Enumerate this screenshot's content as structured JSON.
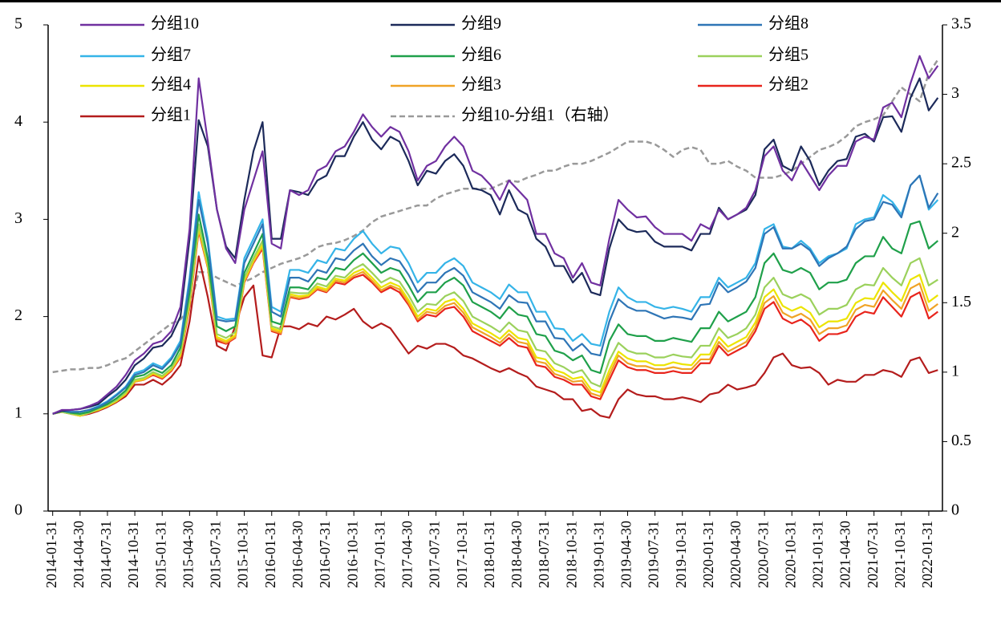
{
  "chart_data": {
    "type": "line",
    "categories": [
      "2014-01-31",
      null,
      null,
      "2014-04-30",
      null,
      null,
      "2014-07-31",
      null,
      null,
      "2014-10-31",
      null,
      null,
      "2015-01-31",
      null,
      null,
      "2015-04-30",
      null,
      null,
      "2015-07-31",
      null,
      null,
      "2015-10-31",
      null,
      null,
      "2016-01-31",
      null,
      null,
      "2016-04-30",
      null,
      null,
      "2016-07-31",
      null,
      null,
      "2016-10-31",
      null,
      null,
      "2017-01-31",
      null,
      null,
      "2017-04-30",
      null,
      null,
      "2017-07-31",
      null,
      null,
      "2017-10-31",
      null,
      null,
      "2018-01-31",
      null,
      null,
      "2018-04-30",
      null,
      null,
      "2018-07-31",
      null,
      null,
      "2018-10-31",
      null,
      null,
      "2019-01-31",
      null,
      null,
      "2019-04-30",
      null,
      null,
      "2019-07-31",
      null,
      null,
      "2019-10-31",
      null,
      null,
      "2020-01-31",
      null,
      null,
      "2020-04-30",
      null,
      null,
      "2020-07-31",
      null,
      null,
      "2020-10-31",
      null,
      null,
      "2021-01-31",
      null,
      null,
      "2021-04-30",
      null,
      null,
      "2021-07-31",
      null,
      null,
      "2021-10-31",
      null,
      null,
      "2022-01-31",
      null
    ],
    "ylim": [
      0,
      5
    ],
    "yticks": [
      0,
      1,
      2,
      3,
      4,
      5
    ],
    "y2lim": [
      0,
      3.5
    ],
    "y2ticks": [
      0,
      0.5,
      1,
      1.5,
      2,
      2.5,
      3,
      3.5
    ],
    "grid": false,
    "series": [
      {
        "name": "分组10",
        "color": "#7030a0",
        "values": [
          1,
          1.04,
          1.04,
          1.05,
          1.08,
          1.12,
          1.2,
          1.28,
          1.4,
          1.55,
          1.62,
          1.72,
          1.75,
          1.85,
          2.1,
          2.9,
          4.45,
          3.8,
          3.1,
          2.7,
          2.55,
          3.1,
          3.4,
          3.7,
          2.75,
          2.7,
          3.3,
          3.25,
          3.3,
          3.5,
          3.55,
          3.7,
          3.75,
          3.9,
          4.08,
          3.95,
          3.85,
          3.95,
          3.9,
          3.7,
          3.4,
          3.55,
          3.6,
          3.75,
          3.85,
          3.75,
          3.5,
          3.45,
          3.35,
          3.2,
          3.4,
          3.3,
          3.2,
          2.85,
          2.85,
          2.65,
          2.6,
          2.4,
          2.55,
          2.35,
          2.32,
          2.8,
          3.2,
          3.1,
          3.02,
          3.03,
          2.92,
          2.85,
          2.85,
          2.85,
          2.78,
          2.95,
          2.9,
          3.1,
          3.0,
          3.05,
          3.12,
          3.3,
          3.65,
          3.75,
          3.5,
          3.4,
          3.6,
          3.45,
          3.3,
          3.45,
          3.55,
          3.55,
          3.8,
          3.85,
          3.82,
          4.15,
          4.2,
          4.05,
          4.4,
          4.68,
          4.45,
          4.58
        ]
      },
      {
        "name": "分组9",
        "color": "#1c2a5a",
        "values": [
          1,
          1.03,
          1.04,
          1.05,
          1.07,
          1.1,
          1.18,
          1.25,
          1.35,
          1.5,
          1.57,
          1.68,
          1.7,
          1.8,
          2.0,
          2.8,
          4.02,
          3.75,
          3.1,
          2.72,
          2.6,
          3.2,
          3.7,
          4.0,
          2.8,
          2.8,
          3.3,
          3.28,
          3.25,
          3.4,
          3.45,
          3.65,
          3.65,
          3.85,
          4.0,
          3.82,
          3.72,
          3.85,
          3.8,
          3.6,
          3.35,
          3.5,
          3.47,
          3.6,
          3.67,
          3.55,
          3.32,
          3.3,
          3.25,
          3.05,
          3.3,
          3.1,
          3.05,
          2.8,
          2.72,
          2.52,
          2.52,
          2.35,
          2.45,
          2.25,
          2.22,
          2.7,
          3.0,
          2.9,
          2.87,
          2.88,
          2.77,
          2.72,
          2.72,
          2.72,
          2.68,
          2.85,
          2.85,
          3.12,
          3.0,
          3.05,
          3.1,
          3.25,
          3.72,
          3.82,
          3.55,
          3.5,
          3.75,
          3.6,
          3.35,
          3.5,
          3.6,
          3.62,
          3.85,
          3.88,
          3.8,
          4.05,
          4.06,
          3.9,
          4.25,
          4.45,
          4.12,
          4.25
        ]
      },
      {
        "name": "分组8",
        "color": "#2e75b6",
        "values": [
          1,
          1.03,
          1.02,
          1.02,
          1.04,
          1.07,
          1.12,
          1.19,
          1.27,
          1.4,
          1.43,
          1.5,
          1.46,
          1.56,
          1.72,
          2.35,
          3.2,
          2.75,
          1.97,
          1.95,
          1.96,
          2.55,
          2.75,
          2.95,
          2.05,
          2.0,
          2.4,
          2.4,
          2.36,
          2.48,
          2.45,
          2.6,
          2.58,
          2.68,
          2.75,
          2.62,
          2.53,
          2.6,
          2.57,
          2.43,
          2.25,
          2.35,
          2.35,
          2.45,
          2.5,
          2.42,
          2.25,
          2.2,
          2.15,
          2.08,
          2.22,
          2.15,
          2.14,
          1.95,
          1.95,
          1.78,
          1.77,
          1.65,
          1.72,
          1.62,
          1.6,
          1.95,
          2.18,
          2.1,
          2.06,
          2.06,
          2.02,
          1.98,
          2.0,
          1.99,
          1.97,
          2.12,
          2.13,
          2.35,
          2.25,
          2.3,
          2.36,
          2.5,
          2.85,
          2.92,
          2.7,
          2.7,
          2.75,
          2.68,
          2.52,
          2.6,
          2.65,
          2.72,
          2.9,
          2.98,
          3.0,
          3.18,
          3.15,
          3.02,
          3.35,
          3.45,
          3.12,
          3.27
        ]
      },
      {
        "name": "分组7",
        "color": "#35b4e8",
        "values": [
          1,
          1.03,
          1.02,
          1.02,
          1.04,
          1.08,
          1.13,
          1.2,
          1.28,
          1.42,
          1.45,
          1.52,
          1.48,
          1.58,
          1.75,
          2.4,
          3.28,
          2.8,
          2.0,
          1.97,
          1.98,
          2.6,
          2.8,
          3.0,
          2.1,
          2.05,
          2.48,
          2.48,
          2.45,
          2.58,
          2.55,
          2.7,
          2.68,
          2.8,
          2.88,
          2.75,
          2.65,
          2.72,
          2.7,
          2.55,
          2.35,
          2.45,
          2.45,
          2.55,
          2.6,
          2.52,
          2.35,
          2.3,
          2.25,
          2.18,
          2.33,
          2.25,
          2.25,
          2.05,
          2.05,
          1.88,
          1.87,
          1.75,
          1.82,
          1.72,
          1.7,
          2.05,
          2.3,
          2.2,
          2.15,
          2.15,
          2.1,
          2.08,
          2.1,
          2.08,
          2.05,
          2.2,
          2.2,
          2.4,
          2.3,
          2.35,
          2.4,
          2.55,
          2.9,
          2.95,
          2.72,
          2.7,
          2.78,
          2.7,
          2.55,
          2.62,
          2.65,
          2.7,
          2.95,
          3.0,
          3.02,
          3.25,
          3.18,
          3.05,
          3.35,
          3.45,
          3.1,
          3.2
        ]
      },
      {
        "name": "分组6",
        "color": "#1fa04a",
        "values": [
          1,
          1.03,
          1.01,
          1.0,
          1.02,
          1.06,
          1.1,
          1.16,
          1.24,
          1.38,
          1.4,
          1.46,
          1.42,
          1.5,
          1.68,
          2.25,
          3.05,
          2.6,
          1.9,
          1.85,
          1.9,
          2.45,
          2.65,
          2.85,
          1.95,
          1.92,
          2.3,
          2.3,
          2.28,
          2.4,
          2.38,
          2.5,
          2.48,
          2.58,
          2.65,
          2.55,
          2.45,
          2.5,
          2.47,
          2.32,
          2.15,
          2.25,
          2.25,
          2.35,
          2.4,
          2.32,
          2.15,
          2.1,
          2.05,
          1.98,
          2.1,
          2.02,
          2.0,
          1.82,
          1.8,
          1.65,
          1.62,
          1.55,
          1.6,
          1.45,
          1.42,
          1.75,
          1.92,
          1.82,
          1.8,
          1.8,
          1.75,
          1.75,
          1.78,
          1.76,
          1.74,
          1.88,
          1.88,
          2.05,
          1.95,
          2.0,
          2.05,
          2.2,
          2.55,
          2.65,
          2.48,
          2.45,
          2.5,
          2.45,
          2.28,
          2.35,
          2.35,
          2.38,
          2.55,
          2.62,
          2.62,
          2.82,
          2.7,
          2.65,
          2.95,
          2.98,
          2.7,
          2.78
        ]
      },
      {
        "name": "分组5",
        "color": "#9bd15c",
        "values": [
          1,
          1.02,
          1.0,
          0.99,
          1.01,
          1.05,
          1.09,
          1.14,
          1.22,
          1.35,
          1.37,
          1.43,
          1.39,
          1.47,
          1.63,
          2.17,
          2.95,
          2.55,
          1.82,
          1.78,
          1.84,
          2.4,
          2.6,
          2.78,
          1.9,
          1.87,
          2.25,
          2.24,
          2.24,
          2.34,
          2.31,
          2.42,
          2.4,
          2.49,
          2.54,
          2.45,
          2.35,
          2.4,
          2.36,
          2.22,
          2.05,
          2.13,
          2.12,
          2.21,
          2.25,
          2.16,
          2.0,
          1.95,
          1.9,
          1.84,
          1.94,
          1.86,
          1.84,
          1.66,
          1.64,
          1.52,
          1.48,
          1.42,
          1.45,
          1.32,
          1.28,
          1.55,
          1.73,
          1.65,
          1.62,
          1.62,
          1.58,
          1.58,
          1.61,
          1.59,
          1.58,
          1.7,
          1.7,
          1.88,
          1.78,
          1.82,
          1.88,
          2.02,
          2.3,
          2.4,
          2.23,
          2.19,
          2.23,
          2.18,
          2.02,
          2.08,
          2.08,
          2.12,
          2.28,
          2.33,
          2.32,
          2.5,
          2.4,
          2.32,
          2.55,
          2.6,
          2.32,
          2.38
        ]
      },
      {
        "name": "分组4",
        "color": "#ece400",
        "values": [
          1,
          1.02,
          1.0,
          0.98,
          1.01,
          1.04,
          1.08,
          1.13,
          1.21,
          1.34,
          1.36,
          1.42,
          1.38,
          1.46,
          1.61,
          2.14,
          2.92,
          2.52,
          1.79,
          1.75,
          1.81,
          2.38,
          2.58,
          2.74,
          1.88,
          1.85,
          2.23,
          2.21,
          2.22,
          2.31,
          2.28,
          2.39,
          2.37,
          2.45,
          2.49,
          2.4,
          2.3,
          2.35,
          2.31,
          2.17,
          2.0,
          2.08,
          2.06,
          2.15,
          2.18,
          2.08,
          1.93,
          1.88,
          1.83,
          1.77,
          1.86,
          1.78,
          1.76,
          1.58,
          1.56,
          1.45,
          1.42,
          1.36,
          1.38,
          1.25,
          1.22,
          1.45,
          1.64,
          1.57,
          1.54,
          1.54,
          1.5,
          1.5,
          1.53,
          1.51,
          1.5,
          1.61,
          1.61,
          1.79,
          1.69,
          1.74,
          1.79,
          1.94,
          2.2,
          2.28,
          2.11,
          2.06,
          2.1,
          2.04,
          1.89,
          1.95,
          1.95,
          1.98,
          2.14,
          2.19,
          2.18,
          2.35,
          2.25,
          2.16,
          2.38,
          2.43,
          2.15,
          2.22
        ]
      },
      {
        "name": "分组3",
        "color": "#f0a326",
        "values": [
          1,
          1.02,
          1.0,
          0.98,
          1.01,
          1.04,
          1.08,
          1.13,
          1.2,
          1.33,
          1.35,
          1.41,
          1.37,
          1.45,
          1.59,
          2.12,
          2.9,
          2.51,
          1.77,
          1.73,
          1.79,
          2.36,
          2.56,
          2.72,
          1.86,
          1.83,
          2.21,
          2.19,
          2.21,
          2.29,
          2.26,
          2.37,
          2.35,
          2.42,
          2.46,
          2.37,
          2.27,
          2.32,
          2.28,
          2.14,
          1.97,
          2.05,
          2.03,
          2.11,
          2.14,
          2.04,
          1.89,
          1.84,
          1.79,
          1.73,
          1.82,
          1.74,
          1.72,
          1.54,
          1.52,
          1.41,
          1.38,
          1.33,
          1.34,
          1.21,
          1.18,
          1.4,
          1.6,
          1.52,
          1.49,
          1.49,
          1.46,
          1.46,
          1.48,
          1.46,
          1.46,
          1.56,
          1.56,
          1.74,
          1.64,
          1.69,
          1.74,
          1.89,
          2.14,
          2.21,
          2.04,
          1.99,
          2.03,
          1.97,
          1.82,
          1.88,
          1.88,
          1.91,
          2.07,
          2.12,
          2.1,
          2.27,
          2.17,
          2.08,
          2.29,
          2.34,
          2.06,
          2.13
        ]
      },
      {
        "name": "分组2",
        "color": "#e8241c",
        "values": [
          1,
          1.02,
          1.0,
          0.98,
          1.01,
          1.04,
          1.08,
          1.13,
          1.2,
          1.33,
          1.35,
          1.4,
          1.36,
          1.44,
          1.58,
          2.1,
          2.88,
          2.5,
          1.75,
          1.72,
          1.78,
          2.35,
          2.55,
          2.7,
          1.85,
          1.82,
          2.2,
          2.18,
          2.2,
          2.28,
          2.25,
          2.35,
          2.33,
          2.4,
          2.43,
          2.35,
          2.25,
          2.3,
          2.25,
          2.12,
          1.95,
          2.02,
          2.0,
          2.08,
          2.1,
          2.0,
          1.85,
          1.8,
          1.75,
          1.7,
          1.78,
          1.7,
          1.68,
          1.5,
          1.48,
          1.38,
          1.35,
          1.3,
          1.3,
          1.18,
          1.15,
          1.35,
          1.55,
          1.48,
          1.45,
          1.45,
          1.42,
          1.42,
          1.44,
          1.42,
          1.42,
          1.52,
          1.52,
          1.7,
          1.6,
          1.65,
          1.7,
          1.85,
          2.08,
          2.15,
          1.98,
          1.93,
          1.97,
          1.9,
          1.75,
          1.82,
          1.82,
          1.85,
          2.0,
          2.05,
          2.03,
          2.2,
          2.1,
          2.0,
          2.2,
          2.25,
          1.98,
          2.05
        ]
      },
      {
        "name": "分组1",
        "color": "#b41c1c",
        "values": [
          1,
          1.03,
          1.0,
          0.98,
          1.0,
          1.03,
          1.07,
          1.12,
          1.18,
          1.3,
          1.3,
          1.35,
          1.3,
          1.38,
          1.5,
          1.95,
          2.62,
          2.2,
          1.7,
          1.65,
          1.9,
          2.2,
          2.32,
          1.6,
          1.58,
          1.9,
          1.9,
          1.87,
          1.93,
          1.9,
          2.0,
          1.97,
          2.02,
          2.08,
          1.95,
          1.88,
          1.93,
          1.88,
          1.75,
          1.62,
          1.7,
          1.67,
          1.72,
          1.72,
          1.68,
          1.6,
          1.57,
          1.52,
          1.47,
          1.43,
          1.47,
          1.42,
          1.38,
          1.28,
          1.25,
          1.22,
          1.15,
          1.15,
          1.03,
          1.05,
          0.98,
          0.96,
          1.15,
          1.25,
          1.2,
          1.18,
          1.18,
          1.15,
          1.15,
          1.17,
          1.15,
          1.12,
          1.2,
          1.22,
          1.3,
          1.25,
          1.27,
          1.3,
          1.42,
          1.58,
          1.62,
          1.5,
          1.47,
          1.48,
          1.42,
          1.3,
          1.35,
          1.33,
          1.33,
          1.4,
          1.4,
          1.45,
          1.43,
          1.38,
          1.55,
          1.58,
          1.42,
          1.45
        ]
      },
      {
        "name": "分组10-分组1（右轴）",
        "color": "#999999",
        "axis": "y2",
        "dashed": true,
        "values": [
          1.0,
          1.01,
          1.02,
          1.02,
          1.03,
          1.03,
          1.05,
          1.08,
          1.1,
          1.15,
          1.2,
          1.25,
          1.3,
          1.35,
          1.38,
          1.45,
          1.72,
          1.72,
          1.68,
          1.65,
          1.62,
          1.65,
          1.68,
          1.72,
          1.75,
          1.78,
          1.8,
          1.82,
          1.85,
          1.9,
          1.92,
          1.93,
          1.95,
          1.98,
          2.02,
          2.08,
          2.12,
          2.14,
          2.16,
          2.18,
          2.2,
          2.2,
          2.25,
          2.28,
          2.3,
          2.32,
          2.32,
          2.32,
          2.32,
          2.35,
          2.38,
          2.37,
          2.4,
          2.42,
          2.45,
          2.45,
          2.48,
          2.5,
          2.5,
          2.52,
          2.55,
          2.58,
          2.62,
          2.66,
          2.66,
          2.66,
          2.64,
          2.6,
          2.55,
          2.6,
          2.62,
          2.6,
          2.5,
          2.5,
          2.52,
          2.48,
          2.45,
          2.4,
          2.4,
          2.4,
          2.42,
          2.45,
          2.5,
          2.55,
          2.6,
          2.62,
          2.65,
          2.7,
          2.77,
          2.8,
          2.82,
          2.85,
          2.95,
          3.05,
          3.0,
          2.95,
          3.15,
          3.25
        ]
      }
    ]
  }
}
